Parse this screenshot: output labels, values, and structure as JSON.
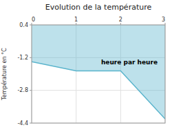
{
  "chart_data": {
    "type": "area",
    "title": "Evolution de la température",
    "ylabel": "Température en °C",
    "annotation": "heure par heure",
    "x": [
      0,
      1,
      2,
      3
    ],
    "values": [
      -1.4,
      -1.85,
      -1.85,
      -4.2
    ],
    "color": "#5ab4cc",
    "xlim": [
      0,
      3
    ],
    "ylim": [
      -4.4,
      0.4
    ],
    "xticks": [
      0,
      1,
      2,
      3
    ],
    "yticks": [
      0.4,
      -1.2,
      -2.8,
      -4.4
    ],
    "grid": true
  }
}
